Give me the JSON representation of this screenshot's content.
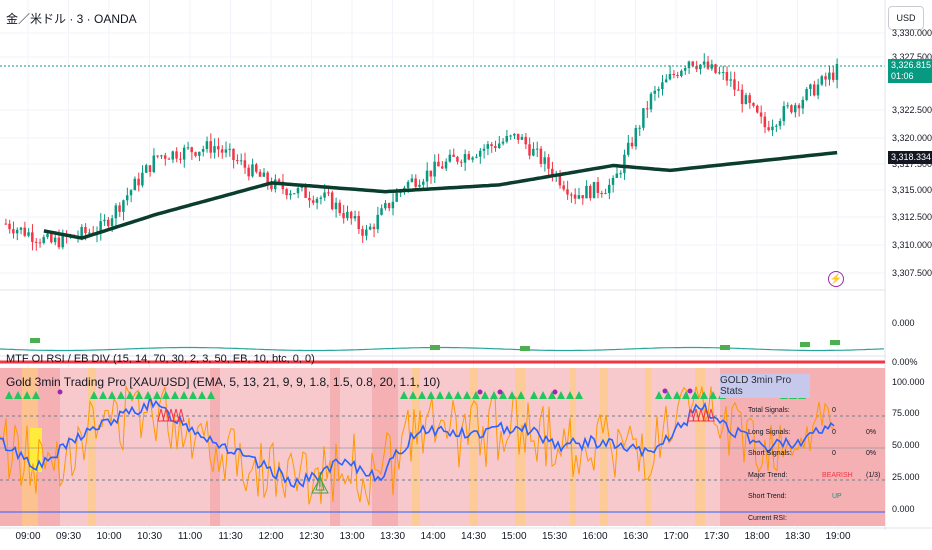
{
  "symbol_title": "金／米ドル · 3 · OANDA",
  "currency_button": "USD",
  "price_axis": [
    "3,330.000",
    "3,327.500",
    "3,322.500",
    "3,320.000",
    "3,317.500",
    "3,315.000",
    "3,312.500",
    "3,310.000",
    "3,307.500"
  ],
  "last_price": {
    "value": "3,326.815",
    "countdown": "01:06",
    "color": "#089981"
  },
  "ema_price": {
    "value": "3,318.334",
    "color": "#131722"
  },
  "rsi_pane": {
    "title": "MTF OI RSI / EB DIV (15, 14, 70, 30, 2, 3, 50, EB, 10, btc, 0, 0)",
    "axis": [
      "0.000",
      "0.00%"
    ]
  },
  "trading_pane": {
    "title": "Gold 3min Trading Pro [XAU/USD] (EMA, 5, 13, 21, 9, 9, 1.8, 1.5, 0.8, 20, 1.1, 10)",
    "axis": [
      "100.000",
      "75.000",
      "50.000",
      "25.000",
      "0.000"
    ]
  },
  "stats_panel": {
    "title": "GOLD 3min Pro Stats",
    "rows": [
      {
        "label": "Total Signals:",
        "value": "0",
        "extra": ""
      },
      {
        "label": "Long Signals:",
        "value": "0",
        "extra": "0%"
      },
      {
        "label": "Short Signals:",
        "value": "0",
        "extra": "0%"
      },
      {
        "label": "Major Trend:",
        "value": "BEARISH",
        "extra": "(1/3)"
      },
      {
        "label": "Short Trend:",
        "value": "UP",
        "extra": ""
      },
      {
        "label": "Current RSI:",
        "value": "",
        "extra": ""
      }
    ]
  },
  "time_axis": [
    "09:00",
    "09:30",
    "10:00",
    "10:30",
    "11:00",
    "11:30",
    "12:00",
    "12:30",
    "13:00",
    "13:30",
    "14:00",
    "14:30",
    "15:00",
    "15:30",
    "16:00",
    "16:30",
    "17:00",
    "17:30",
    "18:00",
    "18:30",
    "19:00"
  ],
  "colors": {
    "up": "#089981",
    "down": "#f23645",
    "ema": "#0b3d2e",
    "rsi_line": "#2962ff",
    "rsi_secondary": "#ff9800",
    "bear_bg": "#f8c9cc"
  },
  "chart_data": {
    "type": "candlestick",
    "price_range": [
      3306,
      3331
    ],
    "ema_start": 3311.0,
    "ema_end": 3318.334,
    "last_close": 3326.815,
    "oscillator_range": [
      0,
      100
    ]
  }
}
